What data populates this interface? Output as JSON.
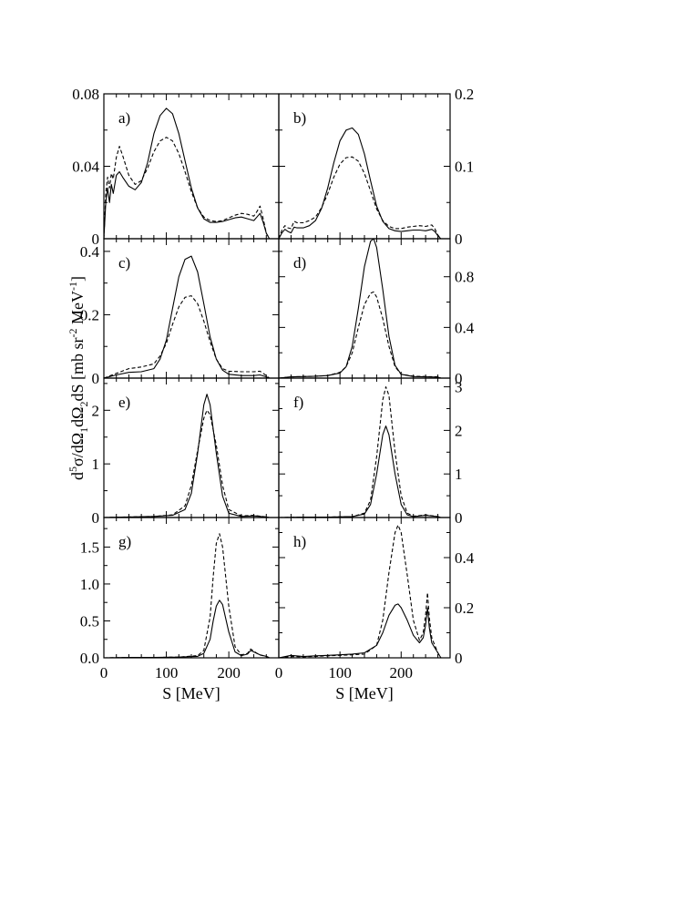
{
  "figure": {
    "ylabel_parts": {
      "pre": "d",
      "sup1": "5",
      "sigma": "σ/dΩ",
      "sub1": "1",
      "omega2": "dΩ",
      "sub2": "2",
      "ds": "dS [mb sr",
      "sup2": "-2",
      "mev": " MeV",
      "sup3": "-1",
      "close": "]"
    }
  },
  "chart_data": [
    {
      "type": "line",
      "panel": "a",
      "label": "a)",
      "side": "left",
      "xlim": [
        0,
        280
      ],
      "ylim": [
        0,
        0.08
      ],
      "yticks": [
        0,
        0.04,
        0.08
      ],
      "ytick_labels": [
        "0",
        "0.04",
        "0.08"
      ],
      "series": [
        {
          "style": "solid",
          "x": [
            0,
            3,
            6,
            9,
            12,
            15,
            20,
            25,
            30,
            40,
            50,
            60,
            70,
            80,
            90,
            100,
            110,
            120,
            130,
            140,
            150,
            160,
            170,
            180,
            190,
            200,
            210,
            220,
            230,
            240,
            245,
            250,
            255,
            260,
            265
          ],
          "y": [
            0,
            0.02,
            0.028,
            0.02,
            0.03,
            0.025,
            0.035,
            0.037,
            0.034,
            0.029,
            0.027,
            0.031,
            0.042,
            0.058,
            0.068,
            0.072,
            0.069,
            0.058,
            0.043,
            0.028,
            0.017,
            0.011,
            0.009,
            0.009,
            0.0095,
            0.0105,
            0.0115,
            0.012,
            0.011,
            0.01,
            0.012,
            0.014,
            0.009,
            0.003,
            0
          ]
        },
        {
          "style": "dashed",
          "x": [
            0,
            3,
            6,
            9,
            12,
            15,
            20,
            25,
            30,
            40,
            50,
            60,
            70,
            80,
            90,
            100,
            110,
            120,
            130,
            140,
            150,
            160,
            170,
            180,
            190,
            200,
            210,
            220,
            230,
            240,
            245,
            250,
            255,
            260,
            265
          ],
          "y": [
            0,
            0.025,
            0.034,
            0.028,
            0.036,
            0.033,
            0.045,
            0.051,
            0.046,
            0.035,
            0.03,
            0.032,
            0.039,
            0.048,
            0.054,
            0.056,
            0.054,
            0.047,
            0.037,
            0.026,
            0.017,
            0.012,
            0.01,
            0.0095,
            0.01,
            0.0115,
            0.013,
            0.014,
            0.0135,
            0.0125,
            0.015,
            0.018,
            0.011,
            0.003,
            0
          ]
        }
      ]
    },
    {
      "type": "line",
      "panel": "b",
      "label": "b)",
      "side": "right",
      "xlim": [
        0,
        280
      ],
      "ylim": [
        0,
        0.2
      ],
      "yticks": [
        0,
        0.1,
        0.2
      ],
      "ytick_labels": [
        "0",
        "0.1",
        "0.2"
      ],
      "series": [
        {
          "style": "solid",
          "x": [
            0,
            5,
            10,
            15,
            20,
            25,
            30,
            40,
            50,
            60,
            70,
            80,
            90,
            100,
            110,
            120,
            130,
            140,
            150,
            160,
            170,
            180,
            190,
            200,
            210,
            220,
            230,
            240,
            250,
            255,
            260,
            265
          ],
          "y": [
            0,
            0.008,
            0.013,
            0.01,
            0.008,
            0.016,
            0.015,
            0.015,
            0.018,
            0.025,
            0.042,
            0.07,
            0.105,
            0.135,
            0.15,
            0.153,
            0.144,
            0.117,
            0.08,
            0.045,
            0.024,
            0.014,
            0.011,
            0.01,
            0.011,
            0.012,
            0.012,
            0.011,
            0.013,
            0.01,
            0.004,
            0
          ]
        },
        {
          "style": "dashed",
          "x": [
            0,
            5,
            10,
            15,
            20,
            25,
            30,
            40,
            50,
            60,
            70,
            80,
            90,
            100,
            110,
            120,
            130,
            140,
            150,
            160,
            170,
            180,
            190,
            200,
            210,
            220,
            230,
            240,
            250,
            255,
            260,
            265
          ],
          "y": [
            0,
            0.012,
            0.018,
            0.015,
            0.014,
            0.024,
            0.022,
            0.022,
            0.025,
            0.03,
            0.043,
            0.062,
            0.085,
            0.103,
            0.112,
            0.113,
            0.107,
            0.09,
            0.066,
            0.041,
            0.025,
            0.017,
            0.014,
            0.014,
            0.016,
            0.017,
            0.018,
            0.017,
            0.019,
            0.014,
            0.005,
            0
          ]
        }
      ]
    },
    {
      "type": "line",
      "panel": "c",
      "label": "c)",
      "side": "left",
      "xlim": [
        0,
        280
      ],
      "ylim": [
        0,
        0.44
      ],
      "yticks": [
        0,
        0.2,
        0.4
      ],
      "ytick_labels": [
        "0",
        "0.2",
        "0.4"
      ],
      "series": [
        {
          "style": "solid",
          "x": [
            0,
            20,
            40,
            60,
            80,
            90,
            100,
            110,
            120,
            130,
            140,
            150,
            160,
            170,
            180,
            190,
            200,
            220,
            240,
            250,
            260,
            265
          ],
          "y": [
            0,
            0.01,
            0.018,
            0.02,
            0.03,
            0.06,
            0.12,
            0.22,
            0.32,
            0.375,
            0.385,
            0.335,
            0.235,
            0.13,
            0.06,
            0.025,
            0.012,
            0.008,
            0.008,
            0.01,
            0.004,
            0
          ]
        },
        {
          "style": "dashed",
          "x": [
            0,
            20,
            40,
            60,
            80,
            90,
            100,
            110,
            120,
            130,
            140,
            150,
            160,
            170,
            180,
            190,
            200,
            220,
            240,
            250,
            260,
            265
          ],
          "y": [
            0,
            0.015,
            0.03,
            0.035,
            0.045,
            0.07,
            0.11,
            0.17,
            0.225,
            0.255,
            0.26,
            0.235,
            0.18,
            0.115,
            0.06,
            0.03,
            0.022,
            0.02,
            0.02,
            0.022,
            0.008,
            0
          ]
        }
      ]
    },
    {
      "type": "line",
      "panel": "d",
      "label": "d)",
      "side": "right",
      "xlim": [
        0,
        280
      ],
      "ylim": [
        0,
        1.1
      ],
      "yticks": [
        0,
        0.4,
        0.8
      ],
      "ytick_labels": [
        "0",
        "0.4",
        "0.8"
      ],
      "series": [
        {
          "style": "solid",
          "x": [
            0,
            20,
            40,
            60,
            80,
            100,
            110,
            120,
            130,
            140,
            150,
            155,
            160,
            170,
            180,
            190,
            200,
            220,
            240,
            260,
            265
          ],
          "y": [
            0,
            0.01,
            0.012,
            0.015,
            0.02,
            0.04,
            0.09,
            0.25,
            0.55,
            0.88,
            1.08,
            1.1,
            1.03,
            0.7,
            0.33,
            0.1,
            0.03,
            0.012,
            0.01,
            0.008,
            0
          ]
        },
        {
          "style": "dashed",
          "x": [
            0,
            20,
            40,
            60,
            80,
            100,
            110,
            120,
            130,
            140,
            150,
            155,
            160,
            170,
            180,
            190,
            200,
            220,
            240,
            260,
            265
          ],
          "y": [
            0,
            0.01,
            0.012,
            0.015,
            0.02,
            0.045,
            0.09,
            0.2,
            0.4,
            0.58,
            0.67,
            0.68,
            0.64,
            0.47,
            0.25,
            0.09,
            0.03,
            0.015,
            0.012,
            0.01,
            0
          ]
        }
      ]
    },
    {
      "type": "line",
      "panel": "e",
      "label": "e)",
      "side": "left",
      "xlim": [
        0,
        280
      ],
      "ylim": [
        0,
        2.6
      ],
      "yticks": [
        0,
        1,
        2
      ],
      "ytick_labels": [
        "0",
        "1",
        "2"
      ],
      "series": [
        {
          "style": "solid",
          "x": [
            0,
            40,
            80,
            110,
            130,
            140,
            150,
            160,
            165,
            170,
            180,
            190,
            200,
            220,
            240,
            260,
            265
          ],
          "y": [
            0,
            0.01,
            0.02,
            0.04,
            0.15,
            0.45,
            1.2,
            2.1,
            2.3,
            2.1,
            1.2,
            0.4,
            0.08,
            0.02,
            0.03,
            0.01,
            0
          ]
        },
        {
          "style": "dashed",
          "x": [
            0,
            40,
            80,
            110,
            130,
            140,
            150,
            160,
            165,
            170,
            180,
            190,
            200,
            220,
            240,
            260,
            265
          ],
          "y": [
            0,
            0.01,
            0.02,
            0.05,
            0.22,
            0.6,
            1.25,
            1.85,
            2.0,
            1.92,
            1.35,
            0.6,
            0.15,
            0.03,
            0.04,
            0.01,
            0
          ]
        }
      ]
    },
    {
      "type": "line",
      "panel": "f",
      "label": "f)",
      "side": "right",
      "xlim": [
        0,
        280
      ],
      "ylim": [
        0,
        3.2
      ],
      "yticks": [
        0,
        1,
        2,
        3
      ],
      "ytick_labels": [
        "0",
        "1",
        "2",
        "3"
      ],
      "series": [
        {
          "style": "solid",
          "x": [
            0,
            40,
            80,
            120,
            140,
            150,
            160,
            170,
            175,
            180,
            190,
            200,
            210,
            220,
            240,
            260,
            265
          ],
          "y": [
            0,
            0.01,
            0.01,
            0.02,
            0.08,
            0.3,
            1.0,
            1.9,
            2.1,
            1.9,
            1.0,
            0.3,
            0.06,
            0.02,
            0.05,
            0.02,
            0
          ]
        },
        {
          "style": "dashed",
          "x": [
            0,
            40,
            80,
            120,
            140,
            150,
            160,
            170,
            175,
            180,
            190,
            200,
            210,
            220,
            240,
            260,
            265
          ],
          "y": [
            0,
            0.01,
            0.01,
            0.02,
            0.1,
            0.4,
            1.4,
            2.7,
            3.0,
            2.8,
            1.5,
            0.5,
            0.1,
            0.03,
            0.06,
            0.02,
            0
          ]
        }
      ]
    },
    {
      "type": "line",
      "panel": "g",
      "label": "g)",
      "side": "left",
      "xlim": [
        0,
        280
      ],
      "ylim": [
        0,
        1.9
      ],
      "yticks": [
        0,
        0.5,
        1.0,
        1.5
      ],
      "ytick_labels": [
        "0.0",
        "0.5",
        "1.0",
        "1.5"
      ],
      "series": [
        {
          "style": "solid",
          "x": [
            0,
            40,
            80,
            120,
            150,
            160,
            170,
            175,
            180,
            185,
            190,
            200,
            210,
            220,
            230,
            235,
            240,
            245,
            250,
            260,
            265
          ],
          "y": [
            0,
            0.005,
            0.005,
            0.01,
            0.02,
            0.06,
            0.25,
            0.5,
            0.7,
            0.78,
            0.72,
            0.35,
            0.08,
            0.03,
            0.05,
            0.1,
            0.08,
            0.06,
            0.04,
            0.02,
            0
          ]
        },
        {
          "style": "dashed",
          "x": [
            0,
            40,
            80,
            120,
            150,
            160,
            170,
            175,
            180,
            185,
            190,
            200,
            210,
            220,
            230,
            235,
            240,
            245,
            250,
            260,
            265
          ],
          "y": [
            0,
            0.005,
            0.005,
            0.01,
            0.03,
            0.1,
            0.55,
            1.1,
            1.55,
            1.68,
            1.5,
            0.7,
            0.15,
            0.04,
            0.06,
            0.12,
            0.09,
            0.06,
            0.04,
            0.02,
            0
          ]
        }
      ]
    },
    {
      "type": "line",
      "panel": "h",
      "label": "h)",
      "side": "right",
      "xlim": [
        0,
        280
      ],
      "ylim": [
        0,
        0.56
      ],
      "yticks": [
        0,
        0.2,
        0.4
      ],
      "ytick_labels": [
        "0",
        "0.2",
        "0.4"
      ],
      "series": [
        {
          "style": "solid",
          "x": [
            0,
            20,
            40,
            60,
            80,
            100,
            120,
            140,
            160,
            170,
            180,
            190,
            195,
            200,
            210,
            220,
            230,
            236,
            240,
            243,
            246,
            250,
            255,
            260,
            265
          ],
          "y": [
            0,
            0.01,
            0.005,
            0.008,
            0.01,
            0.012,
            0.015,
            0.02,
            0.05,
            0.1,
            0.17,
            0.21,
            0.215,
            0.2,
            0.15,
            0.09,
            0.06,
            0.08,
            0.13,
            0.2,
            0.12,
            0.06,
            0.04,
            0.02,
            0
          ]
        },
        {
          "style": "dashed",
          "x": [
            0,
            20,
            40,
            60,
            80,
            100,
            120,
            140,
            160,
            170,
            180,
            190,
            195,
            200,
            210,
            220,
            230,
            236,
            240,
            243,
            246,
            250,
            255,
            260,
            265
          ],
          "y": [
            0,
            0.005,
            0.004,
            0.006,
            0.008,
            0.01,
            0.012,
            0.015,
            0.05,
            0.15,
            0.34,
            0.5,
            0.53,
            0.5,
            0.33,
            0.15,
            0.07,
            0.1,
            0.17,
            0.26,
            0.16,
            0.08,
            0.05,
            0.02,
            0
          ]
        }
      ]
    }
  ],
  "xaxis": {
    "xticks": [
      0,
      100,
      200
    ],
    "xtick_labels": [
      "0",
      "100",
      "200"
    ],
    "xlabel": "S [MeV]"
  }
}
